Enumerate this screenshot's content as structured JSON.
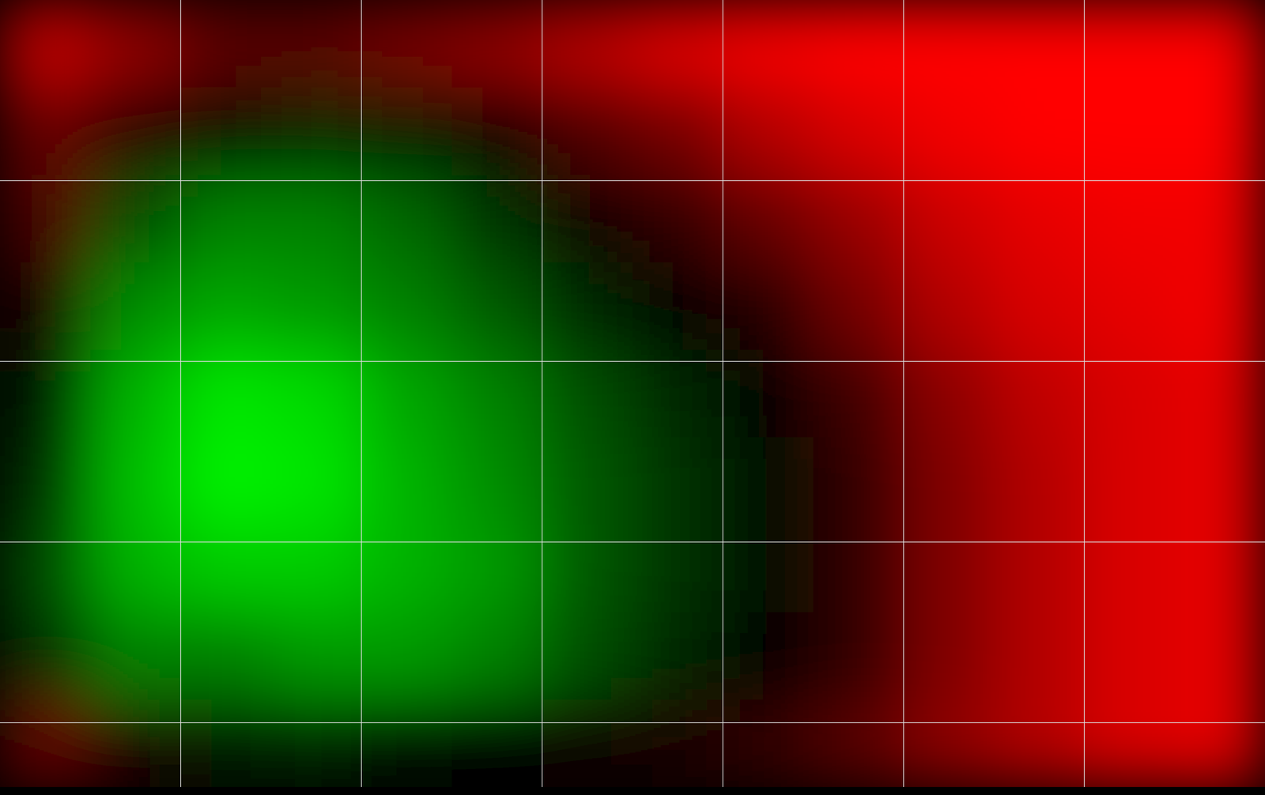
{
  "chart_data": {
    "type": "heatmap",
    "values": [
      [
        0.75,
        0.55,
        0.35,
        0.35,
        0.45,
        0.55,
        0.7,
        0.85,
        0.95,
        1,
        1,
        1,
        1,
        1
      ],
      [
        0.4,
        0.15,
        -0.05,
        -0.15,
        -0.1,
        0.05,
        0.3,
        0.45,
        0.7,
        0.85,
        0.95,
        1,
        1,
        1
      ],
      [
        0.3,
        -0.3,
        -0.5,
        -0.5,
        -0.4,
        -0.2,
        0.05,
        0.2,
        0.4,
        0.6,
        0.8,
        0.9,
        0.95,
        0.95
      ],
      [
        0.1,
        -0.55,
        -0.65,
        -0.6,
        -0.5,
        -0.35,
        -0.15,
        0.0,
        0.15,
        0.45,
        0.7,
        0.85,
        0.9,
        0.95
      ],
      [
        -0.1,
        -0.7,
        -0.9,
        -0.85,
        -0.65,
        -0.5,
        -0.3,
        -0.15,
        0.0,
        0.25,
        0.55,
        0.75,
        0.85,
        0.9
      ],
      [
        -0.2,
        -0.75,
        -0.95,
        -0.9,
        -0.7,
        -0.55,
        -0.35,
        -0.2,
        -0.05,
        0.2,
        0.5,
        0.7,
        0.85,
        0.9
      ],
      [
        -0.3,
        -0.7,
        -0.8,
        -0.8,
        -0.7,
        -0.6,
        -0.35,
        -0.2,
        -0.05,
        0.2,
        0.5,
        0.7,
        0.85,
        0.9
      ],
      [
        -0.2,
        -0.5,
        -0.5,
        -0.6,
        -0.6,
        -0.5,
        -0.3,
        -0.15,
        0.0,
        0.2,
        0.5,
        0.7,
        0.85,
        0.9
      ],
      [
        0.4,
        0.1,
        -0.1,
        -0.15,
        -0.05,
        0.0,
        0.05,
        0.1,
        0.2,
        0.35,
        0.55,
        0.7,
        0.85,
        0.9
      ]
    ],
    "color_range": [
      -1,
      1
    ],
    "grid": true,
    "tick_labels": false
  }
}
